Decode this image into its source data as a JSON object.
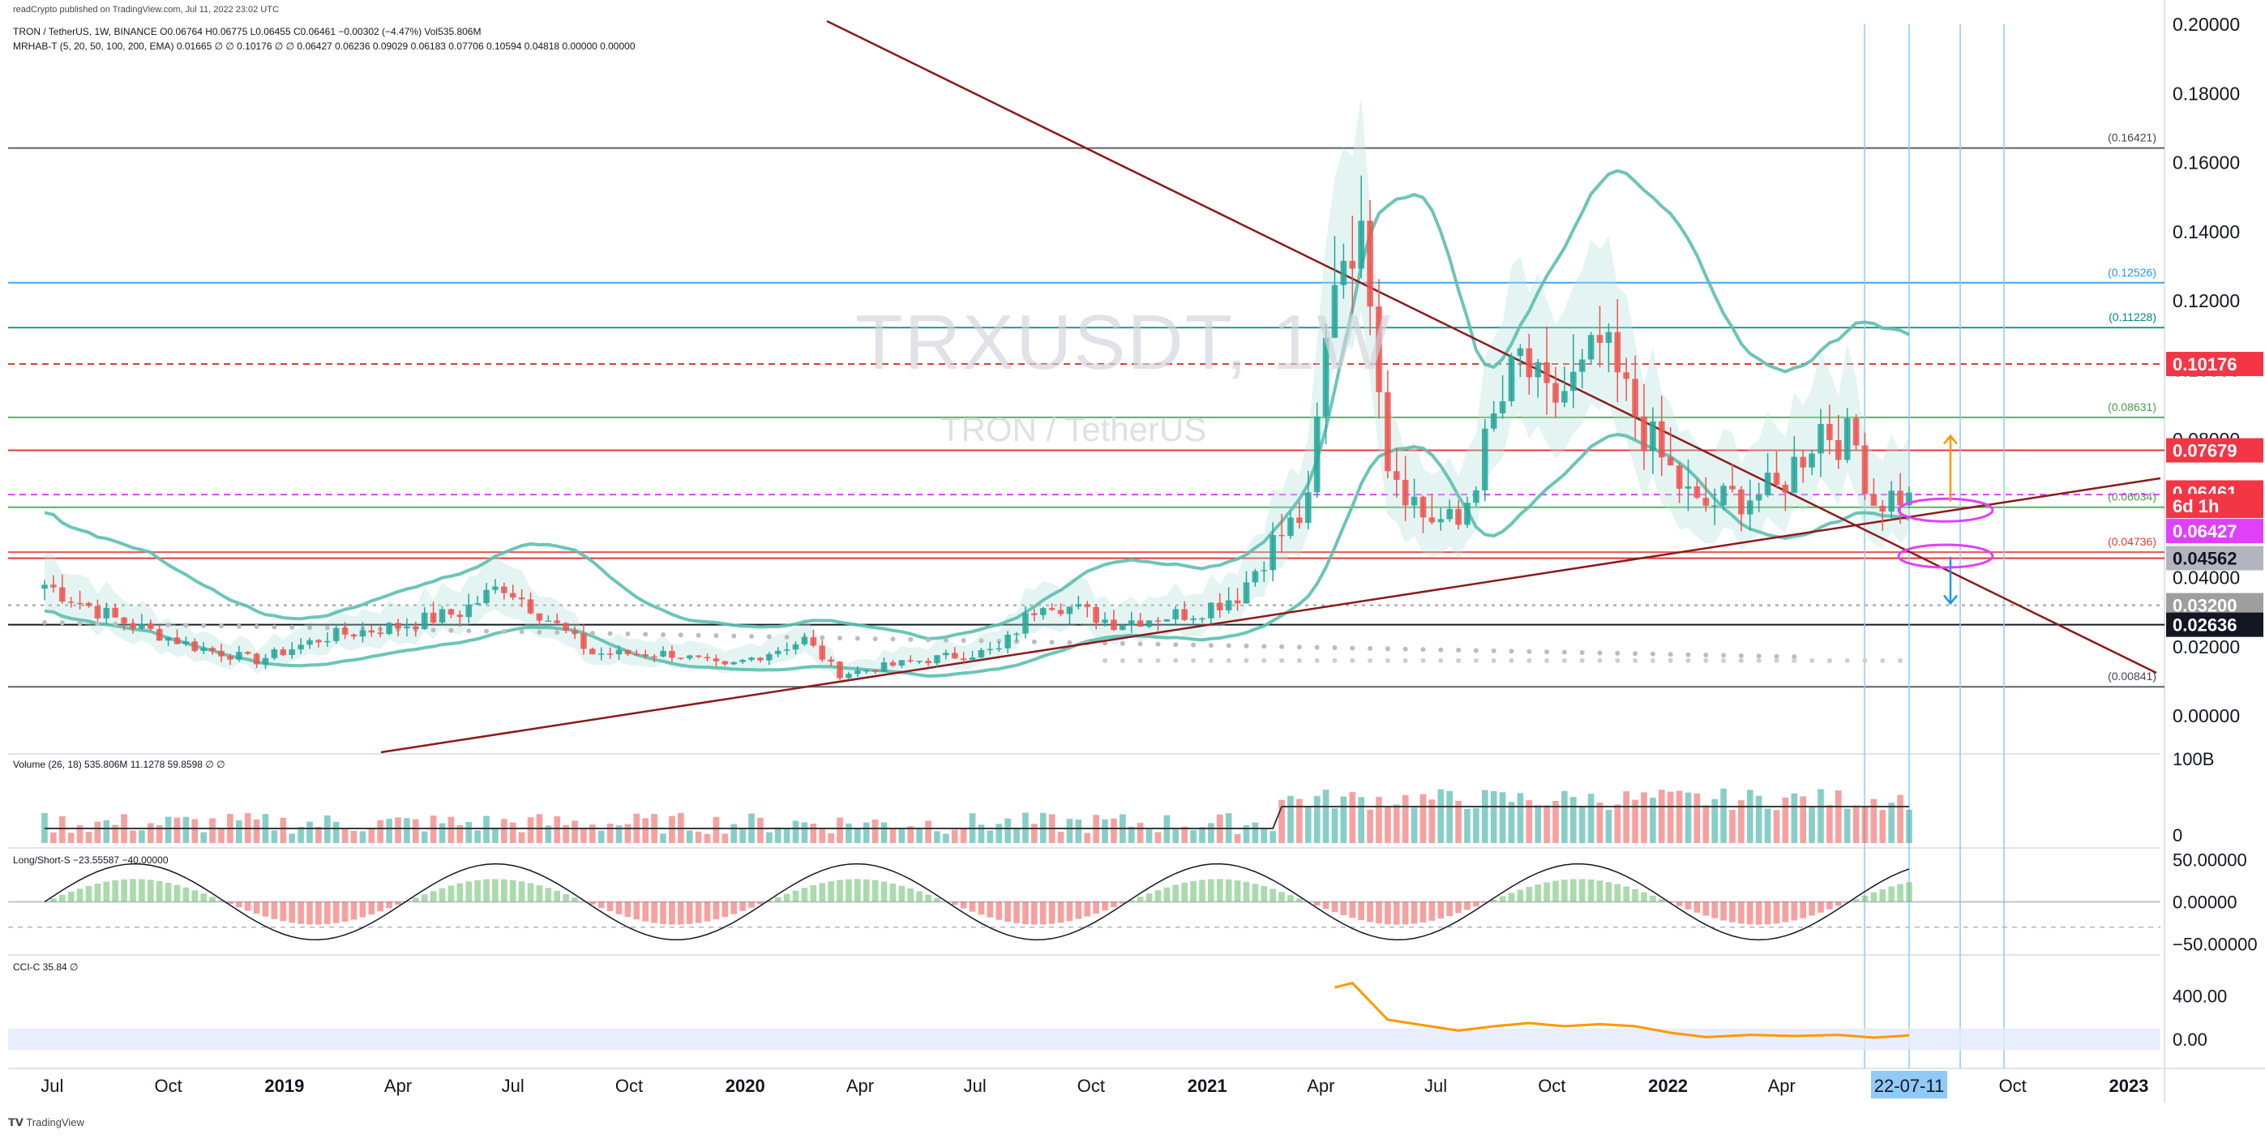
{
  "published": "readCrypto published on TradingView.com, Jul 11, 2022 23:02 UTC",
  "brand": "TradingView",
  "watermark": {
    "symbol": "TRXUSDT, 1W",
    "description": "TRON / TetherUS"
  },
  "legend": {
    "ohlc": "TRON / TetherUS, 1W, BINANCE  O0.06764  H0.06775  L0.06455  C0.06461  −0.00302 (−4.47%)  Vol535.806M",
    "indicator": "MRHAB-T (5, 20, 50, 100, 200, EMA)  0.01665  ∅  ∅  0.10176  ∅  ∅  0.06427  0.06236  0.09029  0.06183  0.07706  0.10594  0.04818  0.00000  0.00000",
    "volume": "Volume (26, 18)  535.806M  11.1278  59.8598  ∅  ∅",
    "longshort": "Long/Short-S  −23.55587  −40.00000",
    "cci": "CCI-C  35.84  ∅"
  },
  "colors": {
    "up": "#26a69a",
    "down": "#ef5350",
    "trend": "#8b1a1a",
    "cyan": "#00bcd4",
    "magenta": "#e040fb",
    "band": "#5cbfb0",
    "orange": "#ff9800",
    "blue": "#2196f3"
  },
  "chart_data": [
    {
      "type": "candlestick",
      "symbol": "TRXUSDT",
      "interval": "1W",
      "x_ticks": [
        "Jul",
        "Oct",
        "2019",
        "Apr",
        "Jul",
        "Oct",
        "2020",
        "Apr",
        "Jul",
        "Oct",
        "2021",
        "Apr",
        "Jul",
        "Oct",
        "2022",
        "Apr",
        "22-07-11",
        "Oct",
        "2023"
      ],
      "y_ticks": [
        "0.20000",
        "0.18000",
        "0.16000",
        "0.14000",
        "0.12000",
        "0.10000",
        "0.08000",
        "0.06000",
        "0.04000",
        "0.02000",
        "0.00000"
      ],
      "ylim": [
        -0.011,
        0.2
      ],
      "price_levels": [
        {
          "label": "(0.16421)",
          "value": 0.16421,
          "color": "#434651"
        },
        {
          "label": "(0.12526)",
          "value": 0.12526,
          "color": "#2196f3"
        },
        {
          "label": "(0.11228)",
          "value": 0.11228,
          "color": "#00897b"
        },
        {
          "label": "(0.08631)",
          "value": 0.08631,
          "color": "#43a047"
        },
        {
          "label": "(0.06034)",
          "value": 0.06034,
          "color": "#43a047"
        },
        {
          "label": "(0.04736)",
          "value": 0.04736,
          "color": "#e53935"
        },
        {
          "label": "(0.00841)",
          "value": 0.00841,
          "color": "#434651"
        }
      ],
      "axis_badges": [
        {
          "label": "0.10176",
          "value": 0.10176,
          "bg": "#f23645",
          "fg": "#ffffff"
        },
        {
          "label": "0.07679",
          "value": 0.07679,
          "bg": "#f23645",
          "fg": "#ffffff"
        },
        {
          "label": "0.06461",
          "value": 0.06461,
          "bg": "#f23645",
          "fg": "#ffffff"
        },
        {
          "label": "6d 1h",
          "value": 0.0607,
          "bg": "#f23645",
          "fg": "#ffffff"
        },
        {
          "label": "0.06427",
          "value": 0.05345,
          "bg": "#e040fb",
          "fg": "#ffffff"
        },
        {
          "label": "0.04562",
          "value": 0.04562,
          "bg": "#b2b5be",
          "fg": "#131722"
        },
        {
          "label": "0.03200",
          "value": 0.032,
          "bg": "#9e9e9e",
          "fg": "#ffffff"
        },
        {
          "label": "0.02636",
          "value": 0.02636,
          "bg": "#131722",
          "fg": "#ffffff"
        }
      ],
      "price_anchors": [
        [
          "2018-06-25",
          0.038
        ],
        [
          "2018-08-20",
          0.028
        ],
        [
          "2018-10-22",
          0.02
        ],
        [
          "2018-12-10",
          0.016
        ],
        [
          "2019-02-04",
          0.023
        ],
        [
          "2019-04-01",
          0.026
        ],
        [
          "2019-05-20",
          0.03
        ],
        [
          "2019-06-24",
          0.038
        ],
        [
          "2019-09-02",
          0.018
        ],
        [
          "2019-11-04",
          0.018
        ],
        [
          "2019-12-16",
          0.014
        ],
        [
          "2020-02-17",
          0.022
        ],
        [
          "2020-03-16",
          0.012
        ],
        [
          "2020-05-18",
          0.016
        ],
        [
          "2020-07-20",
          0.019
        ],
        [
          "2020-08-24",
          0.034
        ],
        [
          "2020-10-19",
          0.027
        ],
        [
          "2020-12-21",
          0.03
        ],
        [
          "2021-01-25",
          0.035
        ],
        [
          "2021-02-22",
          0.05
        ],
        [
          "2021-03-22",
          0.06
        ],
        [
          "2021-04-12",
          0.13
        ],
        [
          "2021-04-26",
          0.14
        ],
        [
          "2021-05-10",
          0.128
        ],
        [
          "2021-05-24",
          0.075
        ],
        [
          "2021-06-21",
          0.058
        ],
        [
          "2021-07-19",
          0.055
        ],
        [
          "2021-08-16",
          0.085
        ],
        [
          "2021-09-06",
          0.103
        ],
        [
          "2021-09-27",
          0.09
        ],
        [
          "2021-10-25",
          0.098
        ],
        [
          "2021-11-08",
          0.107
        ],
        [
          "2021-11-29",
          0.092
        ],
        [
          "2021-12-27",
          0.074
        ],
        [
          "2022-01-24",
          0.06
        ],
        [
          "2022-02-21",
          0.063
        ],
        [
          "2022-03-28",
          0.065
        ],
        [
          "2022-05-02",
          0.084
        ],
        [
          "2022-05-30",
          0.078
        ],
        [
          "2022-06-13",
          0.062
        ],
        [
          "2022-07-11",
          0.06461
        ]
      ],
      "last_candle": {
        "open": 0.06764,
        "high": 0.06775,
        "low": 0.06455,
        "close": 0.06461
      }
    },
    {
      "type": "bar",
      "title": "Volume (26, 18)",
      "y_ticks": [
        "100B",
        "0"
      ]
    },
    {
      "type": "bar",
      "title": "Long/Short-S",
      "y_ticks": [
        "50.00000",
        "0.00000",
        "−50.00000"
      ],
      "ylim": [
        -60,
        60
      ]
    },
    {
      "type": "line",
      "title": "CCI-C",
      "y_ticks": [
        "400.00",
        "0.00"
      ],
      "values": [
        [
          "2021-04-12",
          480
        ],
        [
          "2021-04-26",
          520
        ],
        [
          "2021-05-10",
          350
        ],
        [
          "2021-05-24",
          180
        ],
        [
          "2021-06-21",
          130
        ],
        [
          "2021-07-19",
          80
        ],
        [
          "2021-08-16",
          120
        ],
        [
          "2021-09-13",
          150
        ],
        [
          "2021-10-11",
          120
        ],
        [
          "2021-11-08",
          140
        ],
        [
          "2021-12-06",
          120
        ],
        [
          "2022-01-03",
          60
        ],
        [
          "2022-01-31",
          20
        ],
        [
          "2022-03-07",
          40
        ],
        [
          "2022-04-11",
          30
        ],
        [
          "2022-05-16",
          40
        ],
        [
          "2022-06-13",
          15
        ],
        [
          "2022-07-11",
          35.84
        ]
      ]
    }
  ]
}
